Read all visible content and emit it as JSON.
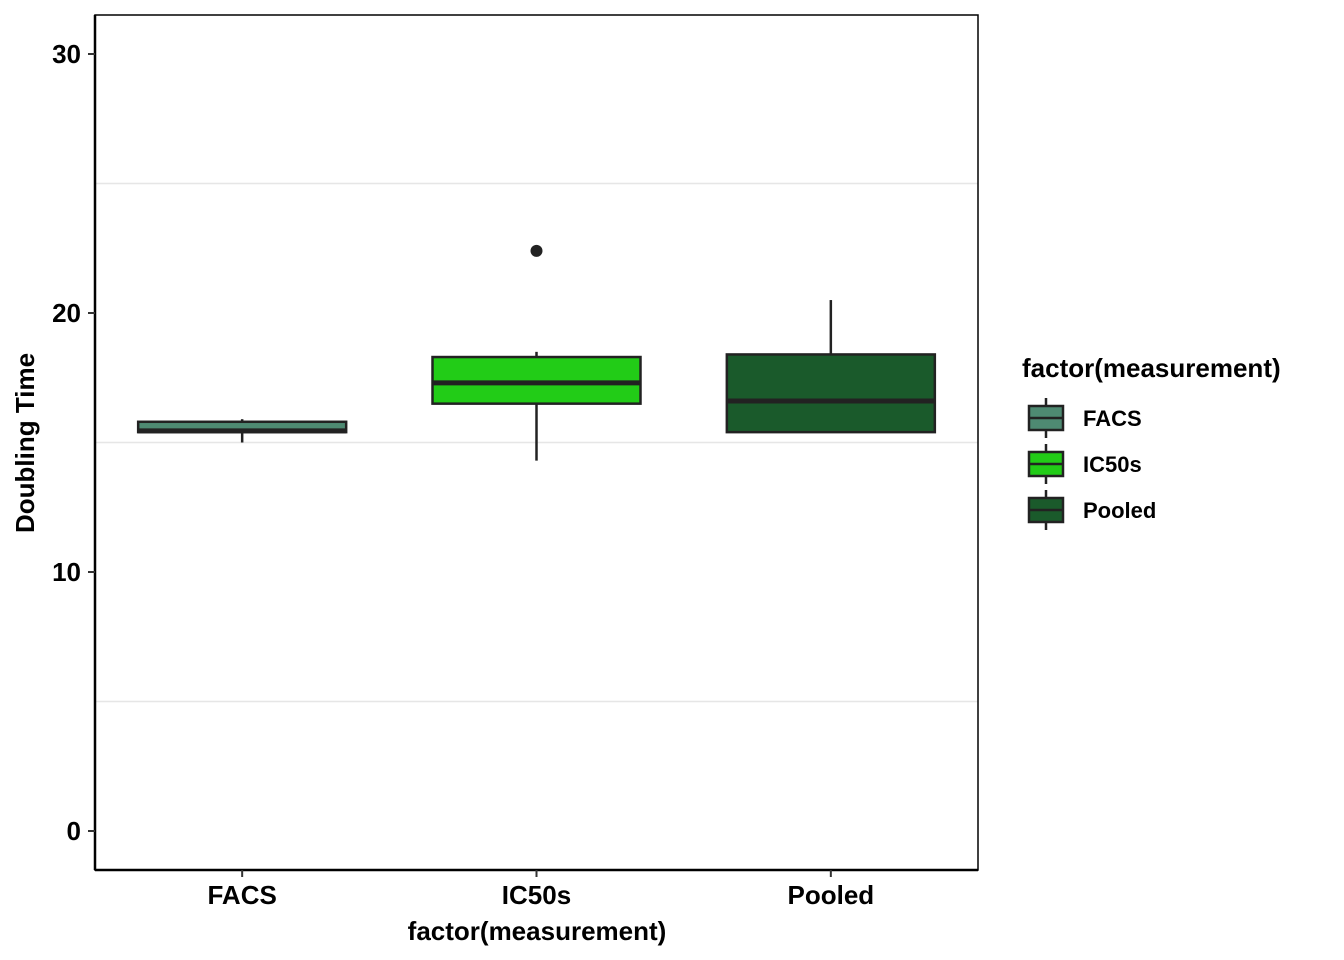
{
  "chart_data": {
    "type": "boxplot",
    "title": "",
    "xlabel": "factor(measurement)",
    "ylabel": "Doubling Time",
    "ylim": [
      -1.5,
      31.5
    ],
    "yticks": [
      0,
      10,
      20,
      30
    ],
    "y_minor_gridlines": [
      5,
      15,
      25
    ],
    "grid": "minor-y-only",
    "categories": [
      "FACS",
      "IC50s",
      "Pooled"
    ],
    "boxes": [
      {
        "name": "FACS",
        "whisker_low": 15.0,
        "q1": 15.4,
        "median": 15.45,
        "q3": 15.8,
        "whisker_high": 15.9,
        "outliers": [],
        "color": "#4e8a72"
      },
      {
        "name": "IC50s",
        "whisker_low": 14.3,
        "q1": 16.5,
        "median": 17.3,
        "q3": 18.3,
        "whisker_high": 18.5,
        "outliers": [
          22.4
        ],
        "color": "#22cc17"
      },
      {
        "name": "Pooled",
        "whisker_low": 15.4,
        "q1": 15.4,
        "median": 16.6,
        "q3": 18.4,
        "whisker_high": 20.5,
        "outliers": [],
        "color": "#1a5a2b"
      }
    ],
    "legend": {
      "title": "factor(measurement)",
      "placement": "right",
      "entries": [
        {
          "label": "FACS",
          "color": "#4e8a72"
        },
        {
          "label": "IC50s",
          "color": "#22cc17"
        },
        {
          "label": "Pooled",
          "color": "#1a5a2b"
        }
      ]
    }
  }
}
